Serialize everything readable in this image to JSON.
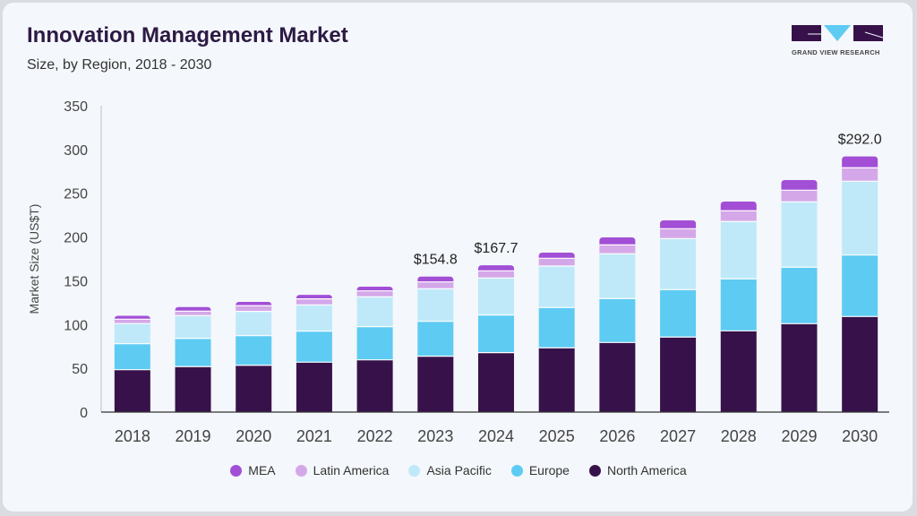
{
  "header": {
    "title": "Innovation Management Market",
    "subtitle": "Size, by Region, 2018 - 2030",
    "logo_text": "GRAND VIEW RESEARCH"
  },
  "chart_data": {
    "type": "bar",
    "stacked": true,
    "title": "Innovation Management Market",
    "subtitle": "Size, by Region, 2018 - 2030",
    "xlabel": "",
    "ylabel": "Market Size (US$T)",
    "ylim": [
      0,
      350
    ],
    "yticks": [
      0,
      50,
      100,
      150,
      200,
      250,
      300,
      350
    ],
    "categories": [
      "2018",
      "2019",
      "2020",
      "2021",
      "2022",
      "2023",
      "2024",
      "2025",
      "2026",
      "2027",
      "2028",
      "2029",
      "2030"
    ],
    "series": [
      {
        "name": "North America",
        "color": "#37124a",
        "values": [
          48.4,
          51.9,
          53.5,
          57.0,
          59.7,
          63.8,
          67.9,
          73.4,
          79.5,
          85.7,
          92.8,
          101.0,
          109.2
        ]
      },
      {
        "name": "Europe",
        "color": "#5ecbf3",
        "values": [
          29.7,
          32.3,
          33.8,
          35.4,
          37.9,
          39.9,
          43.0,
          46.0,
          50.2,
          54.2,
          59.4,
          64.5,
          70.2
        ]
      },
      {
        "name": "Asia Pacific",
        "color": "#bfe9f9",
        "values": [
          23.0,
          26.0,
          27.7,
          30.1,
          34.1,
          37.2,
          42.3,
          47.4,
          51.2,
          58.3,
          65.5,
          74.7,
          84.3
        ]
      },
      {
        "name": "Latin America",
        "color": "#d4a8e8",
        "values": [
          5.0,
          5.1,
          6.5,
          6.8,
          6.8,
          7.8,
          8.2,
          8.9,
          10.1,
          11.3,
          12.3,
          13.3,
          15.4
        ]
      },
      {
        "name": "MEA",
        "color": "#a24fd6",
        "values": [
          3.9,
          4.7,
          4.4,
          4.7,
          4.8,
          6.1,
          6.3,
          6.5,
          8.6,
          9.5,
          10.5,
          11.6,
          12.9
        ]
      }
    ],
    "annotations": [
      {
        "category": "2023",
        "text": "$154.8"
      },
      {
        "category": "2024",
        "text": "$167.7"
      },
      {
        "category": "2030",
        "text": "$292.0"
      }
    ],
    "legend": {
      "placement": "bottom",
      "order": [
        "MEA",
        "Latin America",
        "Asia Pacific",
        "Europe",
        "North America"
      ]
    },
    "grid": false
  }
}
